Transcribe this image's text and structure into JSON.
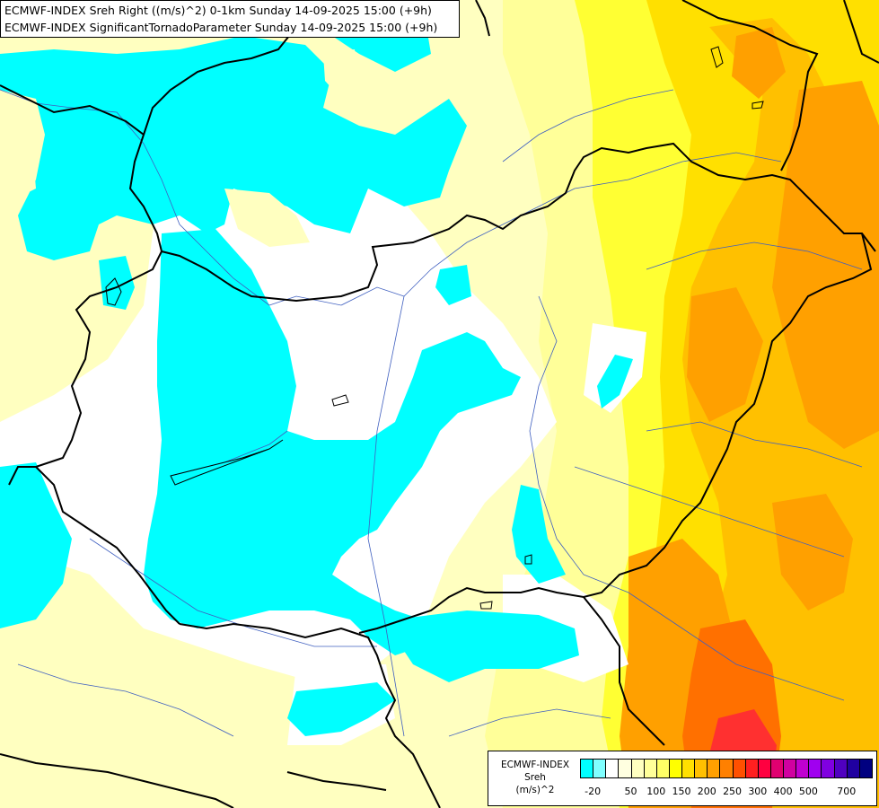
{
  "title": {
    "line1": "ECMWF-INDEX Sreh Right ((m/s)^2) 0-1km Sunday 14-09-2025 15:00 (+9h)",
    "line2": "ECMWF-INDEX SignificantTornadoParameter Sunday 14-09-2025 15:00 (+9h)"
  },
  "legend": {
    "label_source": "ECMWF-INDEX",
    "label_var": "Sreh",
    "label_unit": "(m/s)^2",
    "colors": [
      "#00ffff",
      "#80ffff",
      "#ffffff",
      "#ffffe0",
      "#ffffc0",
      "#ffff99",
      "#ffff66",
      "#ffff00",
      "#ffe000",
      "#ffc000",
      "#ffa000",
      "#ff8000",
      "#ff5000",
      "#ff2020",
      "#ff0040",
      "#e00070",
      "#d000a0",
      "#c000d0",
      "#a000f0",
      "#8000e0",
      "#5000c0",
      "#2000a0",
      "#000080"
    ],
    "ticks": [
      "-20",
      "50",
      "100",
      "150",
      "200",
      "250",
      "300",
      "400",
      "500",
      "700"
    ]
  },
  "fields": {
    "cyan": "#00ffff",
    "white": "#ffffff",
    "pale_yellow": "#ffffc0",
    "light_yellow": "#ffff99",
    "yellow": "#ffff00",
    "gold": "#ffe000",
    "orange_light": "#ffc000",
    "orange": "#ffa000",
    "red_orange": "#ff6000",
    "red": "#ff3030"
  }
}
